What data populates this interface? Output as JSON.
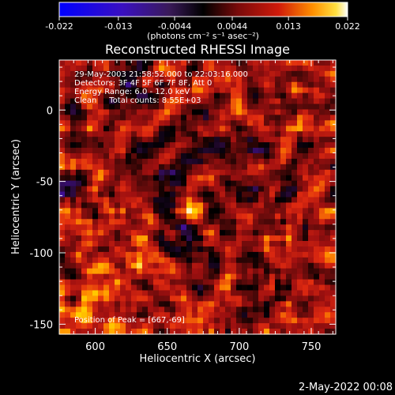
{
  "chart_data": {
    "type": "heatmap",
    "title": "Reconstructed RHESSI Image",
    "xlabel": "Heliocentric X (arcsec)",
    "ylabel": "Heliocentric Y (arcsec)",
    "xlim": [
      575,
      767
    ],
    "ylim": [
      -157,
      35
    ],
    "x_ticks": [
      600,
      650,
      700,
      750
    ],
    "y_ticks": [
      0,
      -50,
      -100,
      -150
    ],
    "colorbar": {
      "label": "(photons cm⁻² s⁻¹ asec⁻²)",
      "ticks": [
        "-0.022",
        "-0.013",
        "-0.0044",
        "0.0044",
        "0.013",
        "0.022"
      ],
      "range": [
        -0.022,
        0.022
      ]
    },
    "annotations": [
      "29-May-2003 21:58:52.000 to 22:03:16.000",
      "Detectors: 3F 4F 5F 6F 7F 8F, Att 0",
      "Energy Range: 6.0 - 12.0 keV",
      "Clean     Total counts: 8.55E+03",
      "Position of Peak = [667,-69]"
    ],
    "peak": {
      "x": 667,
      "y": -69
    },
    "colormap": [
      "#0000ff",
      "#4010a0",
      "#2a0a3a",
      "#000000",
      "#5a0a0a",
      "#a01010",
      "#e02a10",
      "#ff8c00",
      "#ffd000",
      "#ffffff"
    ]
  },
  "footer": {
    "date": "2-May-2022 00:08"
  }
}
